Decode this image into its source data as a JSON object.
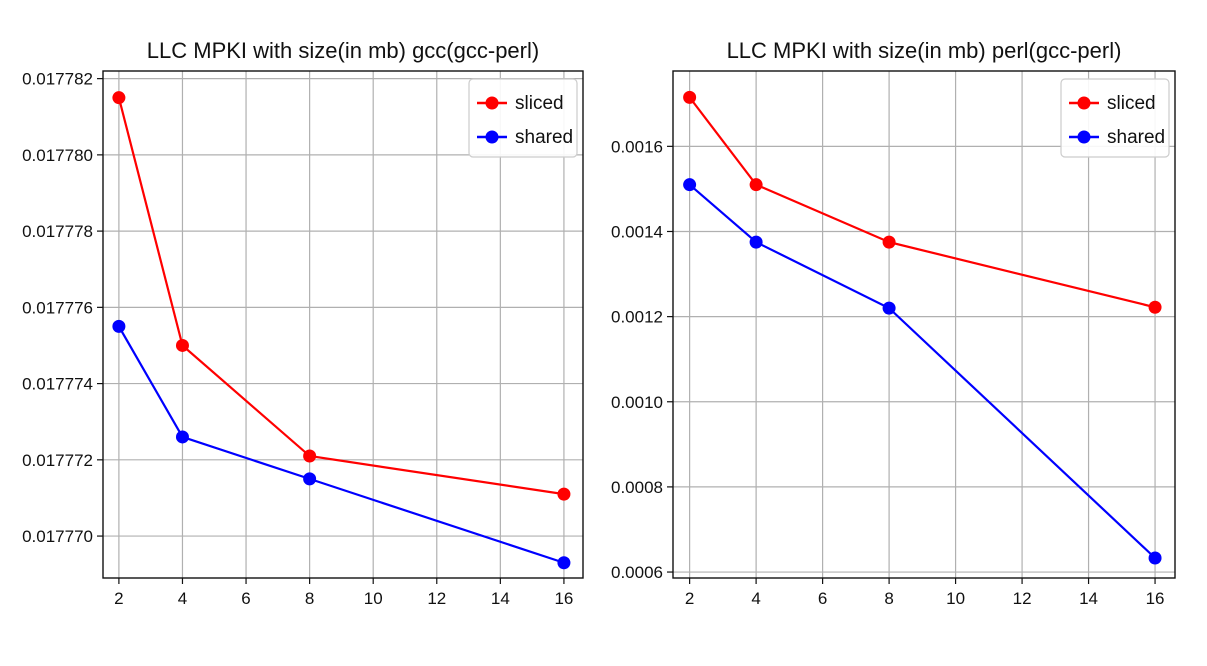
{
  "chart_data": [
    {
      "type": "line",
      "title": "LLC MPKI with size(in mb) gcc(gcc-perl)",
      "xlabel": "",
      "ylabel": "",
      "x": [
        2,
        4,
        8,
        16
      ],
      "xlim": [
        1.5,
        16.6
      ],
      "xticks": [
        2,
        4,
        6,
        8,
        10,
        12,
        14,
        16
      ],
      "ylim": [
        0.0177689,
        0.0177822
      ],
      "yticks": [
        0.01777,
        0.017772,
        0.017774,
        0.017776,
        0.017778,
        0.01778,
        0.017782
      ],
      "ytick_labels": [
        "0.017770",
        "0.017772",
        "0.017774",
        "0.017776",
        "0.017778",
        "0.017780",
        "0.017782"
      ],
      "grid": true,
      "legend_position": "top-right",
      "series": [
        {
          "name": "sliced",
          "color": "#ff0000",
          "values": [
            0.0177815,
            0.017775,
            0.0177721,
            0.0177711
          ]
        },
        {
          "name": "shared",
          "color": "#0000ff",
          "values": [
            0.0177755,
            0.0177726,
            0.0177715,
            0.0177693
          ]
        }
      ]
    },
    {
      "type": "line",
      "title": "LLC MPKI with size(in mb) perl(gcc-perl)",
      "xlabel": "",
      "ylabel": "",
      "x": [
        2,
        4,
        8,
        16
      ],
      "xlim": [
        1.5,
        16.6
      ],
      "xticks": [
        2,
        4,
        6,
        8,
        10,
        12,
        14,
        16
      ],
      "ylim": [
        0.000586,
        0.001777
      ],
      "yticks": [
        0.0006,
        0.0008,
        0.001,
        0.0012,
        0.0014,
        0.0016
      ],
      "ytick_labels": [
        "0.0006",
        "0.0008",
        "0.0010",
        "0.0012",
        "0.0014",
        "0.0016"
      ],
      "grid": true,
      "legend_position": "top-right",
      "series": [
        {
          "name": "sliced",
          "color": "#ff0000",
          "values": [
            0.001715,
            0.00151,
            0.001375,
            0.001222
          ]
        },
        {
          "name": "shared",
          "color": "#0000ff",
          "values": [
            0.00151,
            0.001375,
            0.00122,
            0.000633
          ]
        }
      ]
    }
  ]
}
